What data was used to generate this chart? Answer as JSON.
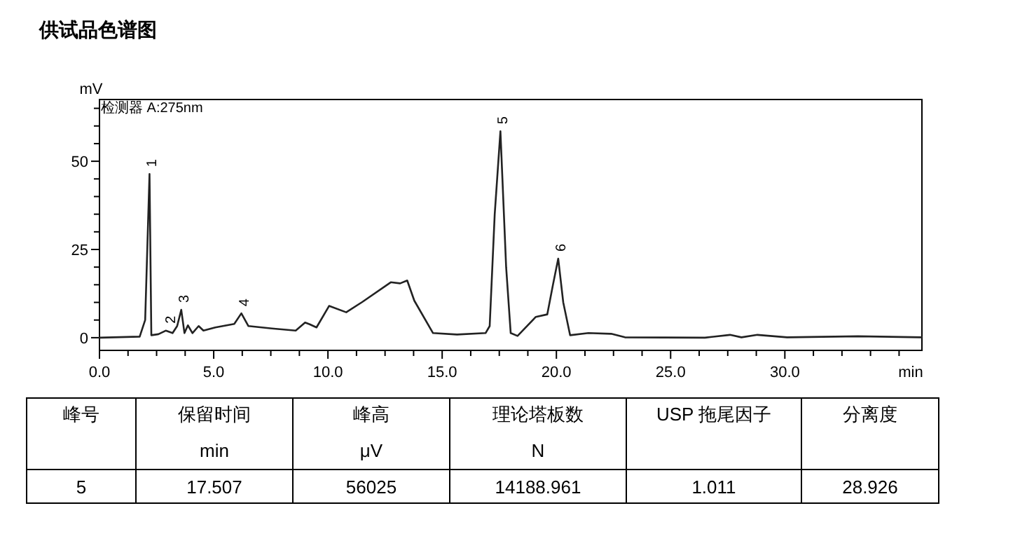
{
  "chart_data": {
    "type": "line",
    "title": "供试品色谱图",
    "xlabel": "min",
    "ylabel": "mV",
    "xlim": [
      0,
      36
    ],
    "ylim": [
      -3.6,
      67.5
    ],
    "xticks": [
      {
        "value": 0,
        "label": "0.0"
      },
      {
        "value": 1.25,
        "label": null
      },
      {
        "value": 2.5,
        "label": null
      },
      {
        "value": 3.75,
        "label": null
      },
      {
        "value": 5,
        "label": "5.0"
      },
      {
        "value": 6.25,
        "label": null
      },
      {
        "value": 7.5,
        "label": null
      },
      {
        "value": 8.75,
        "label": null
      },
      {
        "value": 10,
        "label": "10.0"
      },
      {
        "value": 11.25,
        "label": null
      },
      {
        "value": 12.5,
        "label": null
      },
      {
        "value": 13.75,
        "label": null
      },
      {
        "value": 15,
        "label": "15.0"
      },
      {
        "value": 16.25,
        "label": null
      },
      {
        "value": 17.5,
        "label": null
      },
      {
        "value": 18.75,
        "label": null
      },
      {
        "value": 20,
        "label": "20.0"
      },
      {
        "value": 21.25,
        "label": null
      },
      {
        "value": 22.5,
        "label": null
      },
      {
        "value": 23.75,
        "label": null
      },
      {
        "value": 25,
        "label": "25.0"
      },
      {
        "value": 26.25,
        "label": null
      },
      {
        "value": 27.5,
        "label": null
      },
      {
        "value": 28.75,
        "label": null
      },
      {
        "value": 30,
        "label": "30.0"
      },
      {
        "value": 31.25,
        "label": null
      },
      {
        "value": 32.5,
        "label": null
      },
      {
        "value": 33.75,
        "label": null
      },
      {
        "value": 35,
        "label": null
      }
    ],
    "yticks": [
      {
        "value": 0,
        "label": "0"
      },
      {
        "value": 5,
        "label": null
      },
      {
        "value": 10,
        "label": null
      },
      {
        "value": 15,
        "label": null
      },
      {
        "value": 20,
        "label": null
      },
      {
        "value": 25,
        "label": "25"
      },
      {
        "value": 30,
        "label": null
      },
      {
        "value": 35,
        "label": null
      },
      {
        "value": 40,
        "label": null
      },
      {
        "value": 45,
        "label": null
      },
      {
        "value": 50,
        "label": "50"
      },
      {
        "value": 55,
        "label": null
      },
      {
        "value": 60,
        "label": null
      },
      {
        "value": 65,
        "label": null
      }
    ],
    "marker": "none",
    "line_style": "solid",
    "series": [
      {
        "color": "#222222",
        "x": [
          0,
          1.76,
          2.0,
          2.19,
          2.27,
          2.58,
          2.9,
          3.2,
          3.4,
          3.58,
          3.72,
          3.87,
          4.07,
          4.34,
          4.55,
          5.07,
          5.9,
          6.21,
          6.52,
          7.55,
          8.59,
          9.0,
          9.2,
          9.5,
          10.05,
          10.8,
          11.5,
          12.75,
          13.16,
          13.47,
          13.78,
          14.6,
          15.65,
          16.9,
          17.08,
          17.3,
          17.55,
          17.8,
          18.0,
          18.3,
          19.1,
          19.6,
          19.85,
          20.08,
          20.3,
          20.6,
          21.4,
          22.4,
          23.0,
          26.5,
          27.6,
          28.1,
          28.8,
          30.1,
          33.2,
          36.0
        ],
        "values": [
          0,
          0.3,
          5,
          46.4,
          0.7,
          1,
          2.0,
          1.3,
          3.3,
          7.9,
          1.3,
          3.5,
          1.3,
          3.3,
          2,
          2.9,
          3.9,
          6.9,
          3.3,
          2.6,
          2,
          4.3,
          3.8,
          2.9,
          9.0,
          7.2,
          10.1,
          15.7,
          15.4,
          16.2,
          10.5,
          1.3,
          0.9,
          1.3,
          3.3,
          35,
          58.5,
          20,
          1.3,
          0.5,
          5.9,
          6.6,
          15,
          22.4,
          10,
          0.7,
          1.3,
          1.1,
          0.1,
          0,
          0.8,
          0.1,
          0.8,
          0.1,
          0.4,
          0.1
        ]
      }
    ],
    "annotations": [
      "检测器 A:275nm",
      {
        "text": "1",
        "x": 2.19,
        "y": 46.4
      },
      {
        "text": "2",
        "x": 3.0,
        "y": 2.0
      },
      {
        "text": "3",
        "x": 3.58,
        "y": 7.9
      },
      {
        "text": "4",
        "x": 6.21,
        "y": 6.9
      },
      {
        "text": "5",
        "x": 17.55,
        "y": 58.5
      },
      {
        "text": "6",
        "x": 20.08,
        "y": 22.4
      },
      "峰号",
      "保留时间",
      "峰高",
      "理论塔板数",
      "USP 拖尾因子",
      "分离度",
      "min",
      "μV",
      "N",
      "5",
      "17.507",
      "56025",
      "14188.961",
      "1.011",
      "28.926"
    ]
  }
}
